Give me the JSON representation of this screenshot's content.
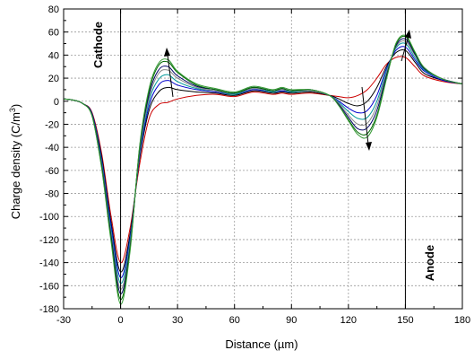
{
  "chart_data": {
    "type": "line",
    "title": "",
    "xlabel": "Distance (µm)",
    "ylabel": "Charge density (C/m",
    "ylabel_sup": "3",
    "ylabel_close": ")",
    "xlim": [
      -30,
      180
    ],
    "ylim": [
      -180,
      80
    ],
    "xticks": [
      -30,
      0,
      30,
      60,
      90,
      120,
      150,
      180
    ],
    "yticks": [
      80,
      60,
      40,
      20,
      0,
      -20,
      -40,
      -60,
      -80,
      -100,
      -120,
      -140,
      -160,
      -180
    ],
    "grid": true,
    "legend": "none",
    "annotations": {
      "cathode": "Cathode",
      "anode": "Anode",
      "cathode_x": 0,
      "anode_x": 150
    },
    "x": [
      -30,
      -25,
      -20,
      -15,
      -10,
      -5,
      0,
      5,
      10,
      15,
      20,
      25,
      30,
      40,
      50,
      60,
      70,
      80,
      85,
      90,
      100,
      110,
      115,
      120,
      125,
      130,
      135,
      140,
      145,
      150,
      155,
      160,
      170,
      180
    ],
    "series": [
      {
        "color": "#cc0000",
        "values": [
          2,
          1,
          -2,
          -10,
          -45,
          -100,
          -140,
          -110,
          -55,
          -15,
          -3,
          -1,
          2,
          5,
          6,
          4,
          8,
          6,
          7,
          6,
          7,
          5,
          4,
          3,
          5,
          10,
          20,
          32,
          38,
          38,
          30,
          22,
          17,
          15
        ]
      },
      {
        "color": "#000000",
        "values": [
          2,
          1,
          -2,
          -11,
          -48,
          -105,
          -148,
          -115,
          -50,
          -8,
          8,
          12,
          10,
          8,
          7,
          5,
          9,
          7,
          8,
          7,
          8,
          5,
          2,
          -2,
          -4,
          0,
          12,
          30,
          42,
          44,
          34,
          24,
          18,
          15
        ]
      },
      {
        "color": "#0000cc",
        "values": [
          2,
          1,
          -2,
          -11,
          -50,
          -108,
          -153,
          -118,
          -48,
          -4,
          14,
          18,
          14,
          10,
          8,
          6,
          10,
          8,
          9,
          8,
          9,
          5,
          0,
          -6,
          -10,
          -8,
          5,
          28,
          44,
          47,
          36,
          26,
          18,
          15
        ]
      },
      {
        "color": "#009999",
        "values": [
          2,
          1,
          -2,
          -12,
          -52,
          -112,
          -158,
          -121,
          -46,
          0,
          19,
          23,
          17,
          11,
          9,
          6,
          11,
          8,
          10,
          8,
          9,
          5,
          -1,
          -9,
          -15,
          -14,
          0,
          26,
          46,
          50,
          38,
          27,
          19,
          15
        ]
      },
      {
        "color": "#888888",
        "values": [
          2,
          1,
          -2,
          -12,
          -54,
          -115,
          -163,
          -124,
          -44,
          3,
          24,
          27,
          20,
          12,
          9,
          7,
          11,
          9,
          10,
          9,
          9,
          5,
          -2,
          -12,
          -20,
          -19,
          -4,
          24,
          47,
          52,
          40,
          28,
          19,
          15
        ]
      },
      {
        "color": "#000066",
        "values": [
          2,
          1,
          -2,
          -12,
          -55,
          -117,
          -167,
          -126,
          -42,
          6,
          27,
          30,
          22,
          13,
          10,
          7,
          12,
          9,
          11,
          9,
          10,
          5,
          -3,
          -14,
          -24,
          -23,
          -8,
          22,
          48,
          54,
          41,
          28,
          19,
          15
        ]
      },
      {
        "color": "#006600",
        "values": [
          2,
          1,
          -2,
          -13,
          -57,
          -120,
          -172,
          -128,
          -40,
          9,
          31,
          34,
          25,
          14,
          10,
          7,
          12,
          9,
          11,
          9,
          10,
          5,
          -4,
          -16,
          -27,
          -28,
          -12,
          20,
          49,
          56,
          42,
          29,
          19,
          15
        ]
      },
      {
        "color": "#339933",
        "values": [
          2,
          1,
          -2,
          -13,
          -58,
          -122,
          -176,
          -130,
          -39,
          11,
          33,
          36,
          26,
          15,
          11,
          8,
          13,
          10,
          12,
          10,
          10,
          5,
          -4,
          -17,
          -29,
          -31,
          -14,
          19,
          50,
          57,
          43,
          29,
          19,
          15
        ]
      }
    ]
  }
}
